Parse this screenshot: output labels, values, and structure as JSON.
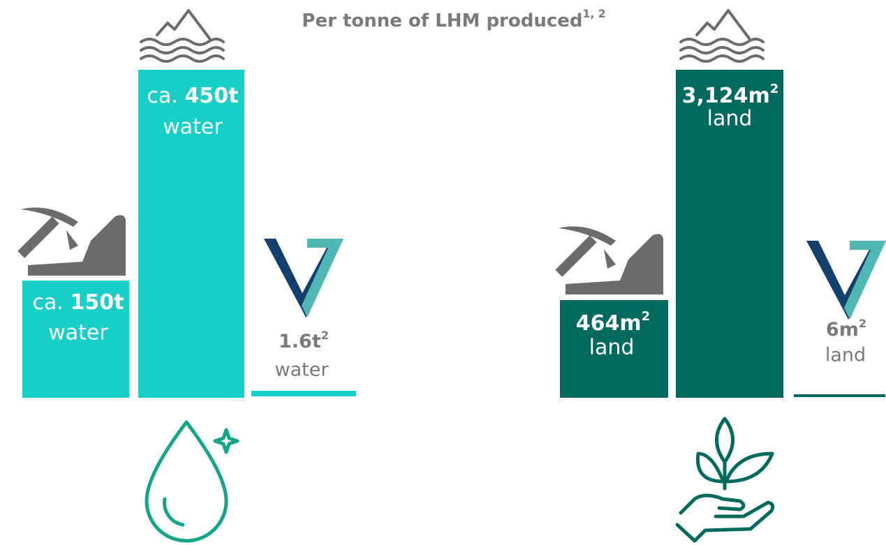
{
  "title": {
    "text": "Per tonne of LHM produced",
    "sup": "1, 2"
  },
  "panels": [
    {
      "bars": [
        {
          "prefix": "ca.",
          "amount": "150t",
          "unit": "water"
        },
        {
          "prefix": "ca.",
          "amount": "450t",
          "unit": "water"
        },
        {
          "amount": "1.6t",
          "sup": "2",
          "unit": "water"
        }
      ]
    },
    {
      "bars": [
        {
          "amount": "464m",
          "sup": "2",
          "unit": "land"
        },
        {
          "amount": "3,124m",
          "sup": "2",
          "unit": "land"
        },
        {
          "amount": "6m",
          "sup": "2",
          "unit": "land"
        }
      ]
    }
  ]
}
